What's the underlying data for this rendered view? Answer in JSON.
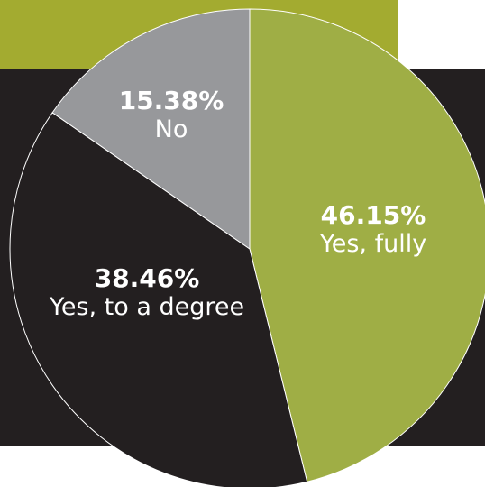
{
  "chart_data": {
    "type": "pie",
    "slices": [
      {
        "label": "Yes, fully",
        "value": 46.15,
        "value_label": "46.15%",
        "color": "#9fae45"
      },
      {
        "label": "Yes, to a degree",
        "value": 38.46,
        "value_label": "38.46%",
        "color": "#231f20"
      },
      {
        "label": "No",
        "value": 15.38,
        "value_label": "15.38%",
        "color": "#97989b"
      }
    ],
    "start_angle": "12 o'clock, clockwise",
    "legend": "none (labels inside slices)"
  },
  "background": {
    "top_band_color": "#a3ab30",
    "dark_band_color": "#231f20"
  }
}
